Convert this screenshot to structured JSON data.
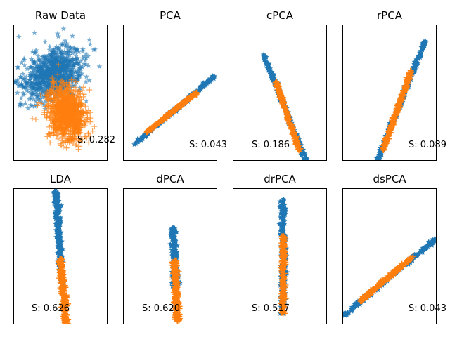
{
  "figure": {
    "colors": {
      "class_a": "#1f77b4",
      "class_b": "#ff7f0e"
    },
    "markers": {
      "class_a": "star",
      "class_b": "plus"
    }
  },
  "chart_data": [
    {
      "type": "scatter",
      "title": "Raw Data",
      "score_label": "S: 0.282",
      "score": 0.282,
      "grid": false,
      "axes_ticks": false,
      "series": [
        {
          "marker": "star",
          "color": "#1f77b4",
          "alpha": 0.6,
          "distribution": {
            "center": [
              0.42,
              0.36
            ],
            "spread": [
              0.16,
              0.09
            ],
            "angle_deg": -20,
            "count": 1400
          }
        },
        {
          "marker": "plus",
          "color": "#ff7f0e",
          "alpha": 0.7,
          "distribution": {
            "center": [
              0.57,
              0.65
            ],
            "spread": [
              0.09,
              0.11
            ],
            "angle_deg": -45,
            "count": 1100
          }
        }
      ]
    },
    {
      "type": "scatter",
      "title": "PCA",
      "score_label": "S: 0.043",
      "score": 0.043,
      "grid": false,
      "axes_ticks": false,
      "series": [
        {
          "marker": "star",
          "color": "#1f77b4",
          "line": {
            "from": [
              0.12,
              0.88
            ],
            "to": [
              0.97,
              0.38
            ],
            "width": 0.014
          }
        },
        {
          "marker": "plus",
          "color": "#ff7f0e",
          "line": {
            "from": [
              0.25,
              0.79
            ],
            "to": [
              0.78,
              0.5
            ],
            "width": 0.012
          }
        }
      ]
    },
    {
      "type": "scatter",
      "title": "cPCA",
      "score_label": "S: 0.186",
      "score": 0.186,
      "grid": false,
      "axes_ticks": false,
      "series": [
        {
          "marker": "star",
          "color": "#1f77b4",
          "line": {
            "from": [
              0.33,
              0.22
            ],
            "to": [
              0.78,
              1.0
            ],
            "width": 0.018
          }
        },
        {
          "marker": "plus",
          "color": "#ff7f0e",
          "line": {
            "from": [
              0.46,
              0.42
            ],
            "to": [
              0.71,
              0.93
            ],
            "width": 0.016
          }
        }
      ]
    },
    {
      "type": "scatter",
      "title": "rPCA",
      "score_label": "S: 0.089",
      "score": 0.089,
      "grid": false,
      "axes_ticks": false,
      "series": [
        {
          "marker": "star",
          "color": "#1f77b4",
          "line": {
            "from": [
              0.37,
              1.0
            ],
            "to": [
              0.88,
              0.12
            ],
            "width": 0.02
          }
        },
        {
          "marker": "plus",
          "color": "#ff7f0e",
          "line": {
            "from": [
              0.43,
              0.92
            ],
            "to": [
              0.73,
              0.34
            ],
            "width": 0.018
          }
        }
      ]
    },
    {
      "type": "scatter",
      "title": "LDA",
      "score_label": "S: 0.626",
      "score": 0.626,
      "grid": false,
      "axes_ticks": false,
      "series": [
        {
          "marker": "star",
          "color": "#1f77b4",
          "line": {
            "from": [
              0.45,
              0.0
            ],
            "to": [
              0.52,
              0.7
            ],
            "width": 0.03
          }
        },
        {
          "marker": "plus",
          "color": "#ff7f0e",
          "line": {
            "from": [
              0.5,
              0.52
            ],
            "to": [
              0.56,
              1.0
            ],
            "width": 0.028
          }
        }
      ]
    },
    {
      "type": "scatter",
      "title": "dPCA",
      "score_label": "S: 0.620",
      "score": 0.62,
      "grid": false,
      "axes_ticks": false,
      "series": [
        {
          "marker": "star",
          "color": "#1f77b4",
          "line": {
            "from": [
              0.53,
              0.29
            ],
            "to": [
              0.56,
              0.74
            ],
            "width": 0.035
          }
        },
        {
          "marker": "plus",
          "color": "#ff7f0e",
          "line": {
            "from": [
              0.55,
              0.53
            ],
            "to": [
              0.58,
              0.98
            ],
            "width": 0.032
          }
        }
      ]
    },
    {
      "type": "scatter",
      "title": "drPCA",
      "score_label": "S: 0.517",
      "score": 0.517,
      "grid": false,
      "axes_ticks": false,
      "series": [
        {
          "marker": "star",
          "color": "#1f77b4",
          "line": {
            "from": [
              0.535,
              0.08
            ],
            "to": [
              0.535,
              0.92
            ],
            "width": 0.03
          }
        },
        {
          "marker": "plus",
          "color": "#ff7f0e",
          "line": {
            "from": [
              0.535,
              0.35
            ],
            "to": [
              0.535,
              0.92
            ],
            "width": 0.024
          }
        }
      ]
    },
    {
      "type": "scatter",
      "title": "dsPCA",
      "score_label": "S: 0.043",
      "score": 0.043,
      "grid": false,
      "axes_ticks": false,
      "series": [
        {
          "marker": "star",
          "color": "#1f77b4",
          "line": {
            "from": [
              0.02,
              0.93
            ],
            "to": [
              1.0,
              0.37
            ],
            "width": 0.016
          }
        },
        {
          "marker": "plus",
          "color": "#ff7f0e",
          "line": {
            "from": [
              0.19,
              0.83
            ],
            "to": [
              0.75,
              0.5
            ],
            "width": 0.014
          }
        }
      ]
    }
  ]
}
